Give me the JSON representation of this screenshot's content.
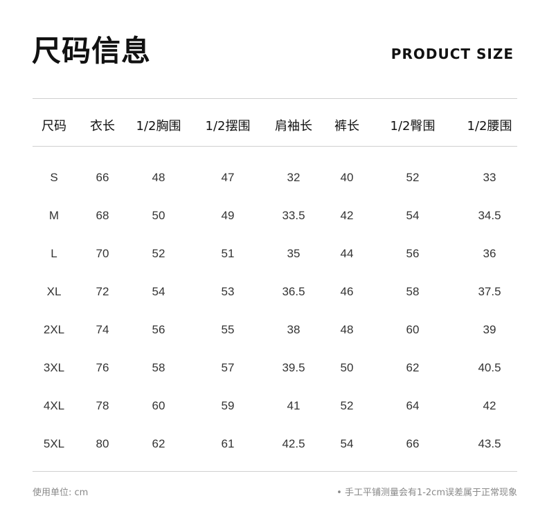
{
  "header": {
    "title": "尺码信息",
    "subtitle": "PRODUCT SIZE"
  },
  "table": {
    "columns": [
      "尺码",
      "衣长",
      "1/2胸围",
      "1/2摆围",
      "肩袖长",
      "裤长",
      "1/2臀围",
      "1/2腰围"
    ],
    "rows": [
      [
        "S",
        "66",
        "48",
        "47",
        "32",
        "40",
        "52",
        "33"
      ],
      [
        "M",
        "68",
        "50",
        "49",
        "33.5",
        "42",
        "54",
        "34.5"
      ],
      [
        "L",
        "70",
        "52",
        "51",
        "35",
        "44",
        "56",
        "36"
      ],
      [
        "XL",
        "72",
        "54",
        "53",
        "36.5",
        "46",
        "58",
        "37.5"
      ],
      [
        "2XL",
        "74",
        "56",
        "55",
        "38",
        "48",
        "60",
        "39"
      ],
      [
        "3XL",
        "76",
        "58",
        "57",
        "39.5",
        "50",
        "62",
        "40.5"
      ],
      [
        "4XL",
        "78",
        "60",
        "59",
        "41",
        "52",
        "64",
        "42"
      ],
      [
        "5XL",
        "80",
        "62",
        "61",
        "42.5",
        "54",
        "66",
        "43.5"
      ]
    ]
  },
  "footer": {
    "unit": "使用单位: cm",
    "note": "• 手工平铺测量会有1-2cm误差属于正常现象"
  }
}
